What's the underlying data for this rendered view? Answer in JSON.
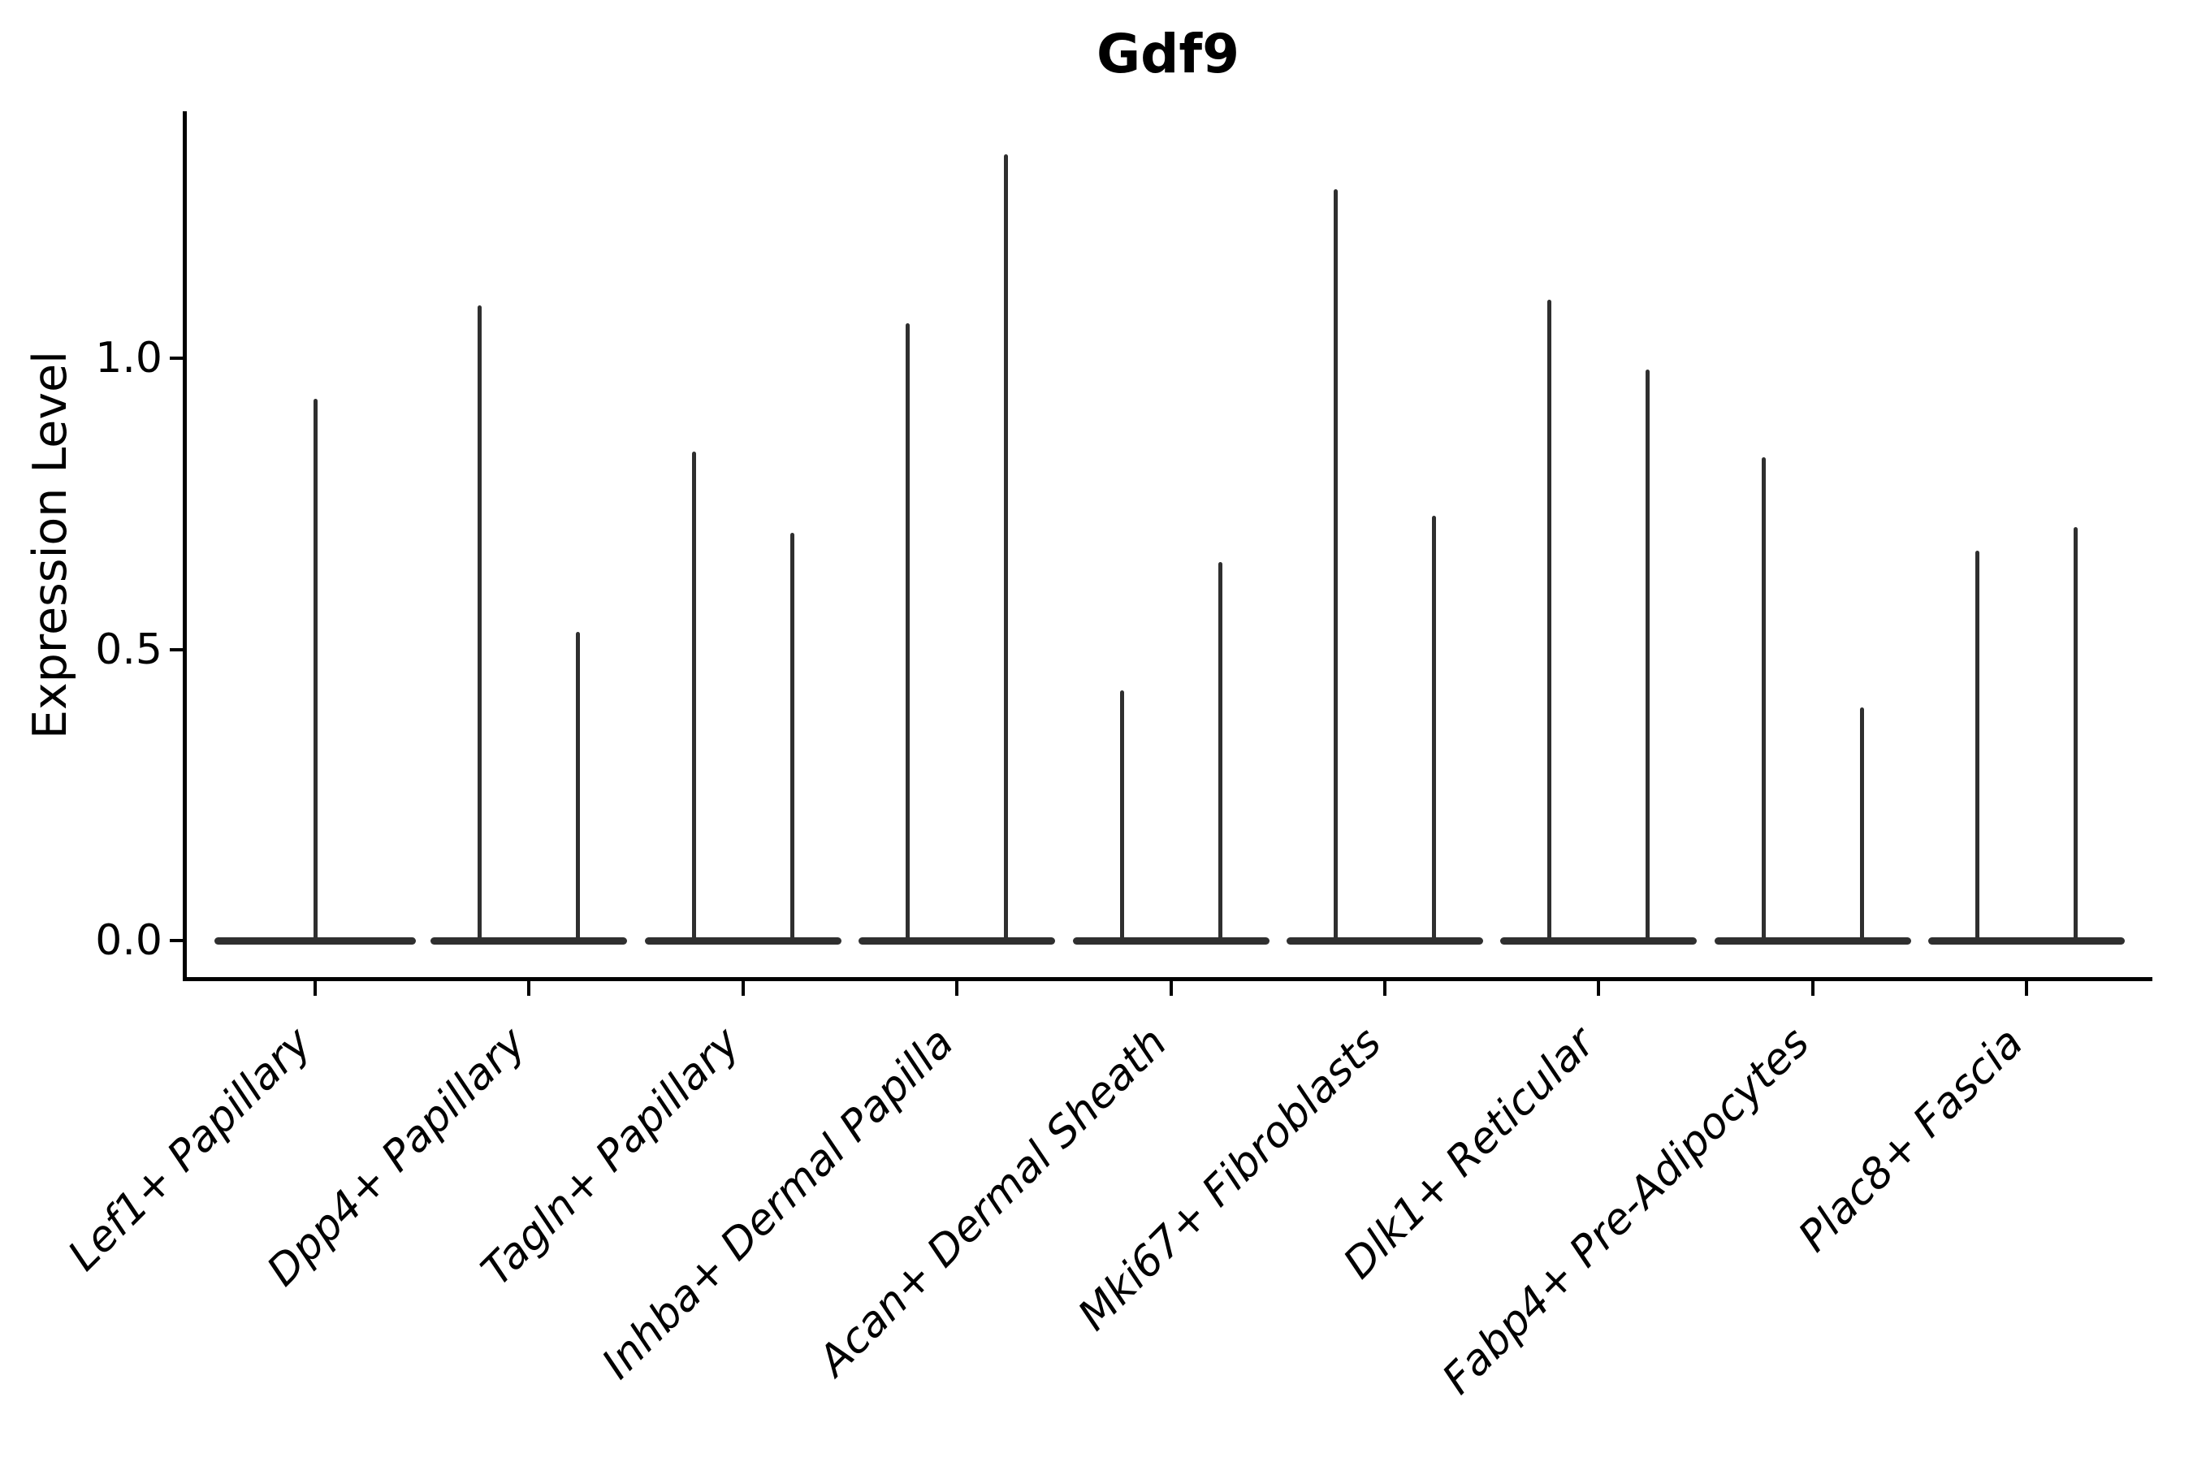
{
  "title": "Gdf9",
  "chart_data": {
    "type": "violin",
    "title": "Gdf9",
    "xlabel": "",
    "ylabel": "Expression Level",
    "ylim": [
      -0.066,
      1.424
    ],
    "yticks": [
      {
        "value": 0.0,
        "label": "0.0"
      },
      {
        "value": 0.5,
        "label": "0.5"
      },
      {
        "value": 1.0,
        "label": "1.0"
      }
    ],
    "grid": false,
    "legend": "none",
    "categories": [
      "Lef1+ Papillary",
      "Dpp4+ Papillary",
      "Tagln+ Papillary",
      "Inhba+ Dermal Papilla",
      "Acan+ Dermal Sheath",
      "Mki67+ Fibroblasts",
      "Dlk1+ Reticular",
      "Fabp4+ Pre-Adipocytes",
      "Plac8+ Fascia"
    ],
    "groups": [
      {
        "category": "Lef1+ Papillary",
        "spike_maxima": [
          0.93
        ]
      },
      {
        "category": "Dpp4+ Papillary",
        "spike_maxima": [
          1.09,
          0.53
        ]
      },
      {
        "category": "Tagln+ Papillary",
        "spike_maxima": [
          0.84,
          0.7
        ]
      },
      {
        "category": "Inhba+ Dermal Papilla",
        "spike_maxima": [
          1.06,
          1.35
        ]
      },
      {
        "category": "Acan+ Dermal Sheath",
        "spike_maxima": [
          0.43,
          0.65
        ]
      },
      {
        "category": "Mki67+ Fibroblasts",
        "spike_maxima": [
          1.29,
          0.73
        ]
      },
      {
        "category": "Dlk1+ Reticular",
        "spike_maxima": [
          1.1,
          0.98
        ]
      },
      {
        "category": "Fabp4+ Pre-Adipocytes",
        "spike_maxima": [
          0.83,
          0.4
        ]
      },
      {
        "category": "Plac8+ Fascia",
        "spike_maxima": [
          0.67,
          0.71
        ]
      }
    ],
    "violin_description": "Each violin is collapsed at expression 0 (flat baseline bar) with a thin central spike rising to the maximum expression value; groups with two spikes show two adjacent violins.",
    "colors": {
      "violin": "#2f2f2f",
      "text": "#000000",
      "spine": "#000000",
      "background": "#ffffff"
    }
  }
}
